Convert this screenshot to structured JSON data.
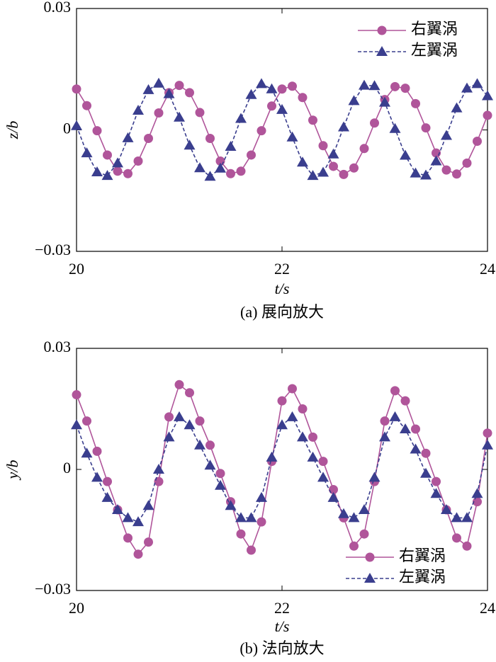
{
  "chart_data": [
    {
      "type": "line",
      "caption": "(a) 展向放大",
      "xlabel": "t/s",
      "ylabel": "z/b",
      "x": [
        20.0,
        20.1,
        20.2,
        20.3,
        20.4,
        20.5,
        20.6,
        20.7,
        20.8,
        20.9,
        21.0,
        21.1,
        21.2,
        21.3,
        21.4,
        21.5,
        21.6,
        21.7,
        21.8,
        21.9,
        22.0,
        22.1,
        22.2,
        22.3,
        22.4,
        22.5,
        22.6,
        22.7,
        22.8,
        22.9,
        23.0,
        23.1,
        23.2,
        23.3,
        23.4,
        23.5,
        23.6,
        23.7,
        23.8,
        23.9,
        24.0
      ],
      "xlim": [
        20,
        24
      ],
      "xticks": [
        20,
        22,
        24
      ],
      "ylim": [
        -0.03,
        0.03
      ],
      "yticks": [
        {
          "value": -0.03,
          "label": "−0.03"
        },
        0,
        0.03
      ],
      "legend": "upper right",
      "series": [
        {
          "name": "右翼涡",
          "color": "#b0559a",
          "marker": "circle",
          "dash": false,
          "values": [
            0.0101,
            0.006,
            -0.0002,
            -0.0062,
            -0.0102,
            -0.0108,
            -0.0077,
            -0.0021,
            0.0042,
            0.0092,
            0.011,
            0.0092,
            0.0043,
            -0.0021,
            -0.0077,
            -0.0108,
            -0.0102,
            -0.0062,
            -0.0002,
            0.0059,
            0.0101,
            0.0108,
            0.008,
            0.0024,
            -0.0039,
            -0.009,
            -0.011,
            -0.0094,
            -0.0046,
            0.0017,
            0.0075,
            0.0107,
            0.0103,
            0.0065,
            0.0005,
            -0.0057,
            -0.0099,
            -0.0109,
            -0.0082,
            -0.0028,
            0.0036
          ]
        },
        {
          "name": "左翼涡",
          "color": "#3a3e8e",
          "marker": "triangle",
          "dash": true,
          "values": [
            0.001,
            -0.0057,
            -0.0104,
            -0.0113,
            -0.0082,
            -0.002,
            0.0048,
            0.0099,
            0.0115,
            0.0089,
            0.0031,
            -0.0038,
            -0.0094,
            -0.0115,
            -0.0095,
            -0.0041,
            0.0028,
            0.0087,
            0.0114,
            0.0101,
            0.005,
            -0.0018,
            -0.008,
            -0.0113,
            -0.0105,
            -0.006,
            0.0007,
            0.0072,
            0.011,
            0.0109,
            0.0068,
            0.0003,
            -0.0063,
            -0.0107,
            -0.0112,
            -0.0077,
            -0.0014,
            0.0054,
            0.0103,
            0.0114,
            0.0084
          ]
        }
      ]
    },
    {
      "type": "line",
      "caption": "(b) 法向放大",
      "xlabel": "t/s",
      "ylabel": "y/b",
      "x": [
        20.0,
        20.1,
        20.2,
        20.3,
        20.4,
        20.5,
        20.6,
        20.7,
        20.8,
        20.9,
        21.0,
        21.1,
        21.2,
        21.3,
        21.4,
        21.5,
        21.6,
        21.7,
        21.8,
        21.9,
        22.0,
        22.1,
        22.2,
        22.3,
        22.4,
        22.5,
        22.6,
        22.7,
        22.8,
        22.9,
        23.0,
        23.1,
        23.2,
        23.3,
        23.4,
        23.5,
        23.6,
        23.7,
        23.8,
        23.9,
        24.0
      ],
      "xlim": [
        20,
        24
      ],
      "xticks": [
        20,
        22,
        24
      ],
      "ylim": [
        -0.03,
        0.03
      ],
      "yticks": [
        {
          "value": -0.03,
          "label": "−0.03"
        },
        0,
        0.03
      ],
      "legend": "lower right",
      "series": [
        {
          "name": "右翼涡",
          "color": "#b0559a",
          "marker": "circle",
          "dash": false,
          "values": [
            0.0185,
            0.012,
            0.0045,
            -0.003,
            -0.01,
            -0.017,
            -0.021,
            -0.018,
            -0.003,
            0.013,
            0.021,
            0.019,
            0.012,
            0.006,
            -0.001,
            -0.008,
            -0.016,
            -0.02,
            -0.013,
            0.002,
            0.017,
            0.02,
            0.015,
            0.008,
            0.002,
            -0.005,
            -0.012,
            -0.019,
            -0.016,
            -0.003,
            0.012,
            0.0195,
            0.017,
            0.01,
            0.004,
            -0.003,
            -0.01,
            -0.017,
            -0.019,
            -0.008,
            0.009
          ]
        },
        {
          "name": "左翼涡",
          "color": "#3a3e8e",
          "marker": "triangle",
          "dash": true,
          "values": [
            0.011,
            0.004,
            -0.002,
            -0.007,
            -0.01,
            -0.012,
            -0.013,
            -0.009,
            0.0,
            0.008,
            0.013,
            0.011,
            0.006,
            0.001,
            -0.004,
            -0.009,
            -0.012,
            -0.012,
            -0.007,
            0.003,
            0.011,
            0.013,
            0.008,
            0.003,
            -0.002,
            -0.007,
            -0.011,
            -0.012,
            -0.01,
            -0.002,
            0.008,
            0.013,
            0.01,
            0.005,
            -0.001,
            -0.006,
            -0.01,
            -0.012,
            -0.012,
            -0.006,
            0.006
          ]
        }
      ]
    }
  ]
}
